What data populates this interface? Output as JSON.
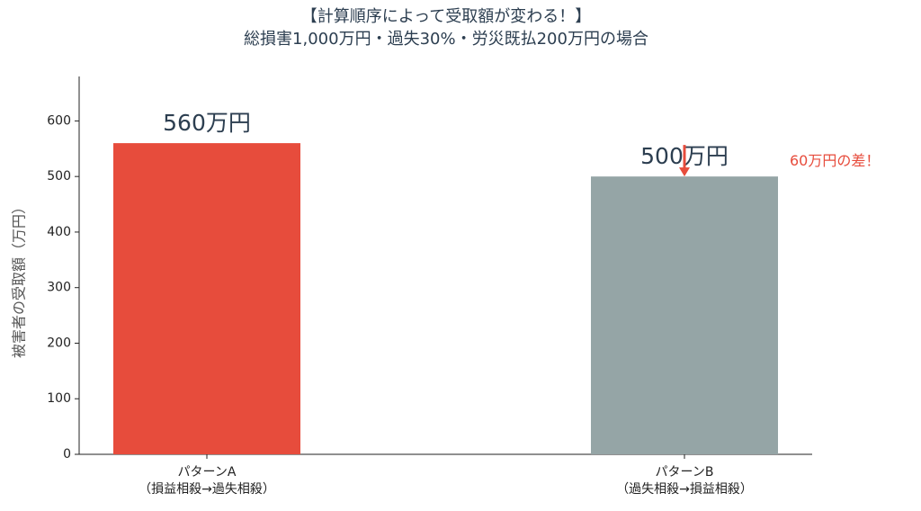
{
  "chart_data": {
    "type": "bar",
    "title": "【計算順序によって受取額が変わる！】\n総損害1,000万円・過失30%・労災既払200万円の場合",
    "ylabel": "被害者の受取額（万円）",
    "categories": [
      "パターンA\n（損益相殺→過失相殺）",
      "パターンB\n（過失相殺→損益相殺）"
    ],
    "values": [
      560,
      500
    ],
    "value_labels": [
      "560万円",
      "500万円"
    ],
    "colors": [
      "#e74c3c",
      "#95a5a6"
    ],
    "annotation": "60万円の差！",
    "annotation_color": "#e74c3c",
    "ylim": [
      0,
      680
    ],
    "yticks": [
      0,
      100,
      200,
      300,
      400,
      500,
      600
    ],
    "grid": false
  }
}
